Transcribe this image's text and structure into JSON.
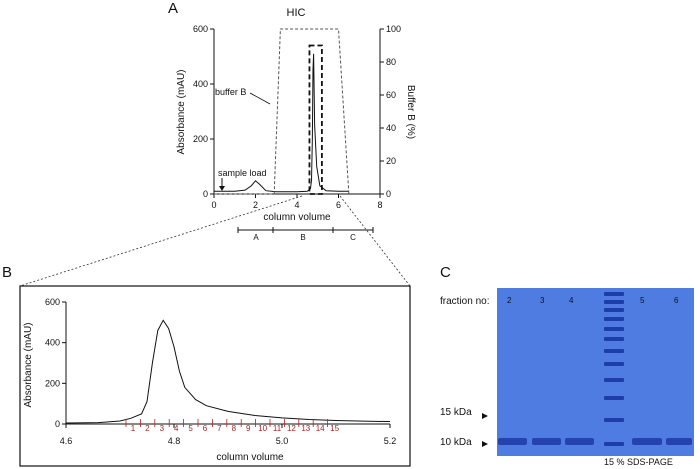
{
  "panels": {
    "a": {
      "letter": "A"
    },
    "b": {
      "letter": "B"
    },
    "c": {
      "letter": "C"
    }
  },
  "chart_data": [
    {
      "type": "line",
      "panel": "A",
      "title": "HIC",
      "xlabel": "column volume",
      "ylabel": "Absorbance (mAU)",
      "y2label": "Buffer B (%)",
      "xlim": [
        0,
        8
      ],
      "ylim": [
        0,
        600
      ],
      "y2lim": [
        0,
        100
      ],
      "xticks": [
        "0",
        "2",
        "4",
        "6",
        "8"
      ],
      "yticks": [
        "0",
        "200",
        "400",
        "600"
      ],
      "y2ticks": [
        "0",
        "20",
        "40",
        "60",
        "80",
        "100"
      ],
      "series": [
        {
          "x": [
            0,
            0.5,
            1.0,
            1.5,
            1.8,
            2.0,
            2.2,
            2.5,
            3.0,
            3.5,
            4.0,
            4.5,
            4.65,
            4.7,
            4.74,
            4.77,
            4.8,
            4.85,
            4.95,
            5.1,
            5.4,
            6.0,
            6.5
          ],
          "y": [
            10,
            10,
            10,
            14,
            30,
            48,
            35,
            12,
            8,
            8,
            8,
            10,
            20,
            50,
            200,
            450,
            510,
            250,
            100,
            30,
            12,
            10,
            10
          ]
        },
        {
          "x": [
            0,
            2.9,
            3.2,
            6.0,
            6.5
          ],
          "y": [
            0,
            0,
            100,
            100,
            0
          ],
          "dashed": true
        }
      ],
      "fraction_pools": [
        "A",
        "B",
        "C"
      ],
      "annotations": [
        "sample load",
        "buffer B"
      ]
    },
    {
      "type": "line",
      "panel": "B",
      "xlabel": "column volume",
      "ylabel": "Absorbance (mAU)",
      "xlim": [
        4.6,
        5.2
      ],
      "ylim": [
        0,
        600
      ],
      "xticks": [
        "4.6",
        "4.8",
        "5.0",
        "5.2"
      ],
      "yticks": [
        "0",
        "200",
        "400",
        "600"
      ],
      "series": [
        {
          "x": [
            4.6,
            4.66,
            4.7,
            4.72,
            4.74,
            4.75,
            4.76,
            4.77,
            4.78,
            4.79,
            4.8,
            4.81,
            4.82,
            4.84,
            4.86,
            4.9,
            4.95,
            5.0,
            5.05,
            5.1,
            5.15,
            5.2
          ],
          "y": [
            5,
            7,
            15,
            28,
            50,
            110,
            300,
            460,
            510,
            470,
            380,
            260,
            180,
            120,
            90,
            62,
            42,
            30,
            22,
            17,
            14,
            12
          ]
        }
      ],
      "fractions": [
        "1",
        "2",
        "3",
        "4",
        "5",
        "6",
        "7",
        "8",
        "9",
        "10",
        "11",
        "12",
        "13",
        "14",
        "15"
      ]
    }
  ],
  "gel": {
    "fraction_label": "fraction no:",
    "lanes": [
      "2",
      "3",
      "4",
      "5",
      "6"
    ],
    "markers": [
      "15 kDa",
      "10 kDa"
    ],
    "caption": "15 % SDS-PAGE",
    "colors": {
      "background": "#4f7ce0",
      "band": "#1f3da8"
    }
  }
}
